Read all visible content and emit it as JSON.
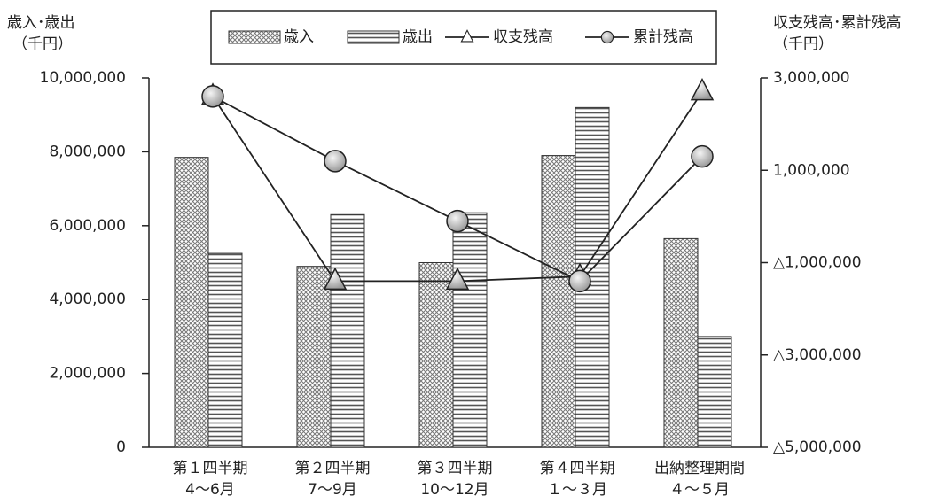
{
  "chart_data": {
    "type": "bar_line",
    "y_label": [
      "歳入･歳出",
      "（千円）"
    ],
    "y2_label": [
      "収支残高･累計残高",
      "（千円）"
    ],
    "categories": [
      [
        "第１四半期",
        "4～6月"
      ],
      [
        "第２四半期",
        "7～9月"
      ],
      [
        "第３四半期",
        "10～12月"
      ],
      [
        "第４四半期",
        "１～３月"
      ],
      [
        "出納整理期間",
        "４～５月"
      ]
    ],
    "series": [
      {
        "name": "歳入",
        "type": "bar",
        "color": "#777777",
        "pattern": "crosshatch",
        "values": [
          7850000,
          4900000,
          5000000,
          7900000,
          5650000
        ]
      },
      {
        "name": "歳出",
        "type": "bar",
        "color": "#555555",
        "pattern": "stripes",
        "values": [
          5250000,
          6300000,
          6350000,
          9200000,
          3000000
        ]
      },
      {
        "name": "収支残高",
        "type": "line",
        "axis": "y2",
        "color": "#222222",
        "marker": "triangle",
        "values": [
          2600000,
          -1400000,
          -1400000,
          -1300000,
          2700000
        ]
      },
      {
        "name": "累計残高",
        "type": "line",
        "axis": "y2",
        "color": "#222222",
        "marker": "circle",
        "values": [
          2600000,
          1200000,
          -100000,
          -1400000,
          1300000
        ]
      }
    ],
    "ylim": [
      0,
      10000000
    ],
    "yticks": [
      0,
      {
        "value": 2000000,
        "label": "2,000,000"
      },
      {
        "value": 4000000,
        "label": "4,000,000"
      },
      {
        "value": 6000000,
        "label": "6,000,000"
      },
      {
        "value": 8000000,
        "label": "8,000,000"
      },
      {
        "value": 10000000,
        "label": "10,000,000"
      }
    ],
    "y2lim": [
      -5000000,
      3000000
    ],
    "y2ticks": [
      {
        "value": -5000000,
        "label": "△5,000,000"
      },
      {
        "value": -3000000,
        "label": "△3,000,000"
      },
      {
        "value": -1000000,
        "label": "△1,000,000"
      },
      {
        "value": 1000000,
        "label": "1,000,000"
      },
      {
        "value": 3000000,
        "label": "3,000,000"
      }
    ],
    "legend": "top",
    "grid": false
  }
}
